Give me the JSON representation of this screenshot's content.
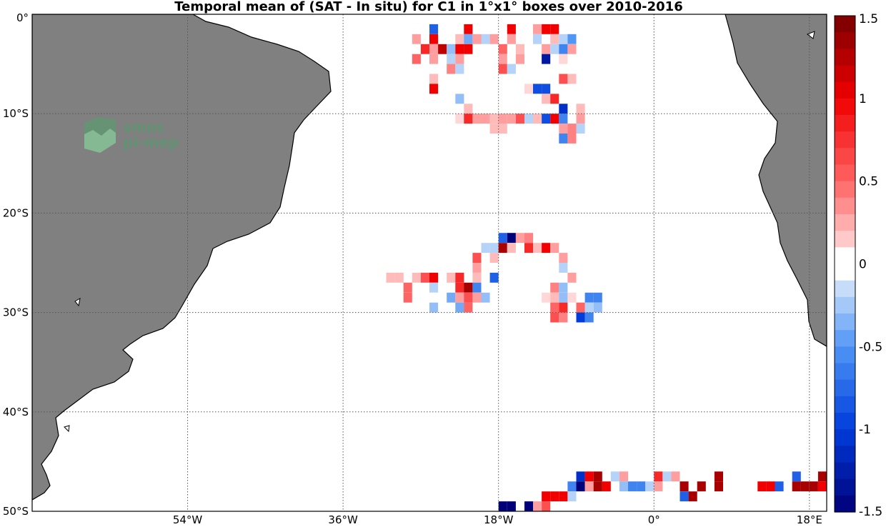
{
  "title": "Temporal mean of (SAT - In situ) for C1 in 1°x1° boxes over 2010-2016",
  "map": {
    "lon_range": [
      -72,
      20
    ],
    "lat_range": [
      -50,
      0
    ],
    "land_color": "#808080",
    "lat_ticks": [
      {
        "lat": 0,
        "label": "0°"
      },
      {
        "lat": -10,
        "label": "10°S"
      },
      {
        "lat": -20,
        "label": "20°S"
      },
      {
        "lat": -30,
        "label": "30°S"
      },
      {
        "lat": -40,
        "label": "40°S"
      },
      {
        "lat": -50,
        "label": "50°S"
      }
    ],
    "lon_ticks": [
      {
        "lon": -54,
        "label": "54°W"
      },
      {
        "lon": -36,
        "label": "36°W"
      },
      {
        "lon": -18,
        "label": "18°W"
      },
      {
        "lon": 0,
        "label": "0°"
      },
      {
        "lon": 18,
        "label": "18°E"
      }
    ],
    "gridlines": "dotted"
  },
  "logo": {
    "line1": "smos",
    "line2": "pi-mep"
  },
  "colorbar": {
    "range": [
      -1.5,
      1.5
    ],
    "step": 0.1,
    "ticks": [
      {
        "value": 1.5,
        "label": "1.5"
      },
      {
        "value": 1,
        "label": "1"
      },
      {
        "value": 0.5,
        "label": "0.5"
      },
      {
        "value": 0,
        "label": "0"
      },
      {
        "value": -0.5,
        "label": "-0.5"
      },
      {
        "value": -1,
        "label": "-1"
      },
      {
        "value": -1.5,
        "label": "-1.5"
      }
    ]
  },
  "chart_data": {
    "type": "heatmap",
    "title": "Temporal mean of (SAT - In situ) for C1 in 1°x1° boxes over 2010-2016",
    "xlabel": "",
    "ylabel": "",
    "xlim": [
      -72,
      20
    ],
    "ylim": [
      -50,
      0
    ],
    "colorbar_range": [
      -1.5,
      1.5
    ],
    "cell_size_deg": 1,
    "cells": [
      {
        "lon": -26,
        "lat": -1,
        "value": -0.8
      },
      {
        "lon": -22,
        "lat": -1,
        "value": 1.0
      },
      {
        "lon": -17,
        "lat": -1,
        "value": 1.0
      },
      {
        "lon": -14,
        "lat": -1,
        "value": 0.3
      },
      {
        "lon": -13,
        "lat": -1,
        "value": 1.0
      },
      {
        "lon": -12,
        "lat": -1,
        "value": 1.0
      },
      {
        "lon": -28,
        "lat": -2,
        "value": 0.3
      },
      {
        "lon": -26,
        "lat": -2,
        "value": 1.0
      },
      {
        "lon": -23,
        "lat": -2,
        "value": 0.2
      },
      {
        "lon": -22,
        "lat": -2,
        "value": -0.4
      },
      {
        "lon": -21,
        "lat": -2,
        "value": 0.3
      },
      {
        "lon": -20,
        "lat": -2,
        "value": -0.2
      },
      {
        "lon": -19,
        "lat": -2,
        "value": 0.3
      },
      {
        "lon": -17,
        "lat": -2,
        "value": 0.3
      },
      {
        "lon": -14,
        "lat": -2,
        "value": -0.2
      },
      {
        "lon": -12,
        "lat": -2,
        "value": 0.2
      },
      {
        "lon": -11,
        "lat": -2,
        "value": -0.2
      },
      {
        "lon": -10,
        "lat": -2,
        "value": -0.5
      },
      {
        "lon": -27,
        "lat": -3,
        "value": 0.8
      },
      {
        "lon": -26,
        "lat": -3,
        "value": 0.3
      },
      {
        "lon": -25,
        "lat": -3,
        "value": 1.2
      },
      {
        "lon": -24,
        "lat": -3,
        "value": -0.3
      },
      {
        "lon": -23,
        "lat": -3,
        "value": 1.0
      },
      {
        "lon": -22,
        "lat": -3,
        "value": 1.0
      },
      {
        "lon": -18,
        "lat": -3,
        "value": 0.5
      },
      {
        "lon": -16,
        "lat": -3,
        "value": 0.2
      },
      {
        "lon": -13,
        "lat": -3,
        "value": 0.3
      },
      {
        "lon": -12,
        "lat": -3,
        "value": -0.2
      },
      {
        "lon": -11,
        "lat": -3,
        "value": -0.6
      },
      {
        "lon": -10,
        "lat": -3,
        "value": 0.3
      },
      {
        "lon": -28,
        "lat": -4,
        "value": 0.5
      },
      {
        "lon": -26,
        "lat": -4,
        "value": 0.3
      },
      {
        "lon": -24,
        "lat": -4,
        "value": -0.2
      },
      {
        "lon": -23,
        "lat": -4,
        "value": 0.3
      },
      {
        "lon": -18,
        "lat": -4,
        "value": 0.3
      },
      {
        "lon": -16,
        "lat": -4,
        "value": 0.3
      },
      {
        "lon": -13,
        "lat": -4,
        "value": -1.3
      },
      {
        "lon": -11,
        "lat": -4,
        "value": 0.1
      },
      {
        "lon": -24,
        "lat": -5,
        "value": 0.4
      },
      {
        "lon": -23,
        "lat": -5,
        "value": -0.2
      },
      {
        "lon": -18,
        "lat": -5,
        "value": 0.6
      },
      {
        "lon": -17,
        "lat": -5,
        "value": -0.2
      },
      {
        "lon": -26,
        "lat": -6,
        "value": 0.2
      },
      {
        "lon": -11,
        "lat": -6,
        "value": 0.6
      },
      {
        "lon": -10,
        "lat": -6,
        "value": 0.2
      },
      {
        "lon": -26,
        "lat": -7,
        "value": 1.0
      },
      {
        "lon": -15,
        "lat": -7,
        "value": 0.1
      },
      {
        "lon": -14,
        "lat": -7,
        "value": -0.9
      },
      {
        "lon": -13,
        "lat": -7,
        "value": -0.9
      },
      {
        "lon": -23,
        "lat": -8,
        "value": -0.3
      },
      {
        "lon": -13,
        "lat": -8,
        "value": 0.2
      },
      {
        "lon": -12,
        "lat": -8,
        "value": 0.8
      },
      {
        "lon": -22,
        "lat": -9,
        "value": 0.2
      },
      {
        "lon": -11,
        "lat": -9,
        "value": -1.1
      },
      {
        "lon": -9,
        "lat": -9,
        "value": 0.2
      },
      {
        "lon": -23,
        "lat": -10,
        "value": 0.1
      },
      {
        "lon": -22,
        "lat": -10,
        "value": 0.8
      },
      {
        "lon": -21,
        "lat": -10,
        "value": 0.3
      },
      {
        "lon": -20,
        "lat": -10,
        "value": 0.3
      },
      {
        "lon": -19,
        "lat": -10,
        "value": 0.2
      },
      {
        "lon": -18,
        "lat": -10,
        "value": 0.3
      },
      {
        "lon": -17,
        "lat": -10,
        "value": 0.3
      },
      {
        "lon": -16,
        "lat": -10,
        "value": 0.6
      },
      {
        "lon": -15,
        "lat": -10,
        "value": -0.2
      },
      {
        "lon": -14,
        "lat": -10,
        "value": 0.2
      },
      {
        "lon": -13,
        "lat": -10,
        "value": -0.9
      },
      {
        "lon": -12,
        "lat": -10,
        "value": 1.0
      },
      {
        "lon": -11,
        "lat": -10,
        "value": -0.6
      },
      {
        "lon": -9,
        "lat": -10,
        "value": 0.3
      },
      {
        "lon": -19,
        "lat": -11,
        "value": 0.2
      },
      {
        "lon": -18,
        "lat": -11,
        "value": 0.2
      },
      {
        "lon": -11,
        "lat": -11,
        "value": 0.3
      },
      {
        "lon": -10,
        "lat": -11,
        "value": 0.4
      },
      {
        "lon": -9,
        "lat": -11,
        "value": -0.2
      },
      {
        "lon": -11,
        "lat": -12,
        "value": -0.6
      },
      {
        "lon": -10,
        "lat": -12,
        "value": 0.4
      },
      {
        "lon": -18,
        "lat": -22,
        "value": -0.8
      },
      {
        "lon": -17,
        "lat": -22,
        "value": -1.5
      },
      {
        "lon": -16,
        "lat": -22,
        "value": 0.3
      },
      {
        "lon": -15,
        "lat": -22,
        "value": 0.4
      },
      {
        "lon": -20,
        "lat": -23,
        "value": -0.2
      },
      {
        "lon": -19,
        "lat": -23,
        "value": -0.2
      },
      {
        "lon": -18,
        "lat": -23,
        "value": 1.3
      },
      {
        "lon": -17,
        "lat": -23,
        "value": 0.2
      },
      {
        "lon": -15,
        "lat": -23,
        "value": 0.8
      },
      {
        "lon": -14,
        "lat": -23,
        "value": 0.2
      },
      {
        "lon": -13,
        "lat": -23,
        "value": 1.0
      },
      {
        "lon": -12,
        "lat": -23,
        "value": 0.3
      },
      {
        "lon": -21,
        "lat": -24,
        "value": 0.6
      },
      {
        "lon": -19,
        "lat": -24,
        "value": 0.2
      },
      {
        "lon": -11,
        "lat": -24,
        "value": 0.3
      },
      {
        "lon": -21,
        "lat": -25,
        "value": 0.3
      },
      {
        "lon": -11,
        "lat": -25,
        "value": -0.2
      },
      {
        "lon": -31,
        "lat": -26,
        "value": 0.2
      },
      {
        "lon": -30,
        "lat": -26,
        "value": 0.2
      },
      {
        "lon": -28,
        "lat": -26,
        "value": 0.2
      },
      {
        "lon": -27,
        "lat": -26,
        "value": 0.6
      },
      {
        "lon": -26,
        "lat": -26,
        "value": 1.0
      },
      {
        "lon": -24,
        "lat": -26,
        "value": 0.2
      },
      {
        "lon": -23,
        "lat": -26,
        "value": 0.8
      },
      {
        "lon": -21,
        "lat": -26,
        "value": 0.2
      },
      {
        "lon": -19,
        "lat": -26,
        "value": -0.8
      },
      {
        "lon": -10,
        "lat": -26,
        "value": 0.3
      },
      {
        "lon": -29,
        "lat": -27,
        "value": 0.5
      },
      {
        "lon": -26,
        "lat": -27,
        "value": -0.2
      },
      {
        "lon": -23,
        "lat": -27,
        "value": 0.8
      },
      {
        "lon": -22,
        "lat": -27,
        "value": 1.3
      },
      {
        "lon": -21,
        "lat": -27,
        "value": -0.6
      },
      {
        "lon": -12,
        "lat": -27,
        "value": 0.4
      },
      {
        "lon": -11,
        "lat": -27,
        "value": -0.3
      },
      {
        "lon": -29,
        "lat": -28,
        "value": 0.5
      },
      {
        "lon": -24,
        "lat": -28,
        "value": -0.4
      },
      {
        "lon": -23,
        "lat": -28,
        "value": 0.3
      },
      {
        "lon": -22,
        "lat": -28,
        "value": 0.6
      },
      {
        "lon": -21,
        "lat": -28,
        "value": 0.3
      },
      {
        "lon": -20,
        "lat": -28,
        "value": -0.3
      },
      {
        "lon": -13,
        "lat": -28,
        "value": 0.1
      },
      {
        "lon": -12,
        "lat": -28,
        "value": 0.2
      },
      {
        "lon": -11,
        "lat": -28,
        "value": -0.3
      },
      {
        "lon": -10,
        "lat": -28,
        "value": 0.1
      },
      {
        "lon": -8,
        "lat": -28,
        "value": -0.6
      },
      {
        "lon": -7,
        "lat": -28,
        "value": -0.6
      },
      {
        "lon": -26,
        "lat": -29,
        "value": -0.3
      },
      {
        "lon": -23,
        "lat": -29,
        "value": -0.4
      },
      {
        "lon": -22,
        "lat": -29,
        "value": 0.5
      },
      {
        "lon": -12,
        "lat": -29,
        "value": 0.5
      },
      {
        "lon": -11,
        "lat": -29,
        "value": 0.8
      },
      {
        "lon": -9,
        "lat": -29,
        "value": 0.5
      },
      {
        "lon": -8,
        "lat": -29,
        "value": -0.2
      },
      {
        "lon": -7,
        "lat": -29,
        "value": -0.3
      },
      {
        "lon": -12,
        "lat": -30,
        "value": 0.6
      },
      {
        "lon": -11,
        "lat": -30,
        "value": 0.4
      },
      {
        "lon": -9,
        "lat": -30,
        "value": -1.0
      },
      {
        "lon": -8,
        "lat": -30,
        "value": -0.6
      },
      {
        "lon": -9,
        "lat": -46,
        "value": -1.1
      },
      {
        "lon": -8,
        "lat": -46,
        "value": 1.0
      },
      {
        "lon": -7,
        "lat": -46,
        "value": 1.3
      },
      {
        "lon": -5,
        "lat": -46,
        "value": -0.2
      },
      {
        "lon": -4,
        "lat": -46,
        "value": 0.3
      },
      {
        "lon": 0,
        "lat": -46,
        "value": 0.8
      },
      {
        "lon": 1,
        "lat": -46,
        "value": -0.2
      },
      {
        "lon": 2,
        "lat": -46,
        "value": 0.3
      },
      {
        "lon": 7,
        "lat": -46,
        "value": 1.3
      },
      {
        "lon": 16,
        "lat": -46,
        "value": -0.8
      },
      {
        "lon": 19,
        "lat": -46,
        "value": 1.3
      },
      {
        "lon": -10,
        "lat": -47,
        "value": -0.6
      },
      {
        "lon": -9,
        "lat": -47,
        "value": -1.5
      },
      {
        "lon": -8,
        "lat": -47,
        "value": 0.3
      },
      {
        "lon": -7,
        "lat": -47,
        "value": 1.3
      },
      {
        "lon": -6,
        "lat": -47,
        "value": 1.0
      },
      {
        "lon": -4,
        "lat": -47,
        "value": -0.3
      },
      {
        "lon": -3,
        "lat": -47,
        "value": -0.6
      },
      {
        "lon": -2,
        "lat": -47,
        "value": -0.6
      },
      {
        "lon": -1,
        "lat": -47,
        "value": -0.2
      },
      {
        "lon": 0,
        "lat": -47,
        "value": 0.3
      },
      {
        "lon": 3,
        "lat": -47,
        "value": 1.3
      },
      {
        "lon": 5,
        "lat": -47,
        "value": 1.3
      },
      {
        "lon": 7,
        "lat": -47,
        "value": 1.3
      },
      {
        "lon": 12,
        "lat": -47,
        "value": 1.0
      },
      {
        "lon": 13,
        "lat": -47,
        "value": 1.0
      },
      {
        "lon": 14,
        "lat": -47,
        "value": -0.8
      },
      {
        "lon": 16,
        "lat": -47,
        "value": 1.3
      },
      {
        "lon": 17,
        "lat": -47,
        "value": 1.3
      },
      {
        "lon": 18,
        "lat": -47,
        "value": 1.3
      },
      {
        "lon": 19,
        "lat": -47,
        "value": 1.0
      },
      {
        "lon": -13,
        "lat": -48,
        "value": 1.0
      },
      {
        "lon": -12,
        "lat": -48,
        "value": 1.0
      },
      {
        "lon": -11,
        "lat": -48,
        "value": 1.0
      },
      {
        "lon": -10,
        "lat": -48,
        "value": -0.2
      },
      {
        "lon": 3,
        "lat": -48,
        "value": -0.8
      },
      {
        "lon": 4,
        "lat": -48,
        "value": 1.3
      },
      {
        "lon": -18,
        "lat": -49,
        "value": -1.5
      },
      {
        "lon": -17,
        "lat": -49,
        "value": -1.5
      },
      {
        "lon": -15,
        "lat": -49,
        "value": -1.5
      },
      {
        "lon": -14,
        "lat": -49,
        "value": 0.3
      },
      {
        "lon": -13,
        "lat": -49,
        "value": 0.6
      }
    ]
  }
}
